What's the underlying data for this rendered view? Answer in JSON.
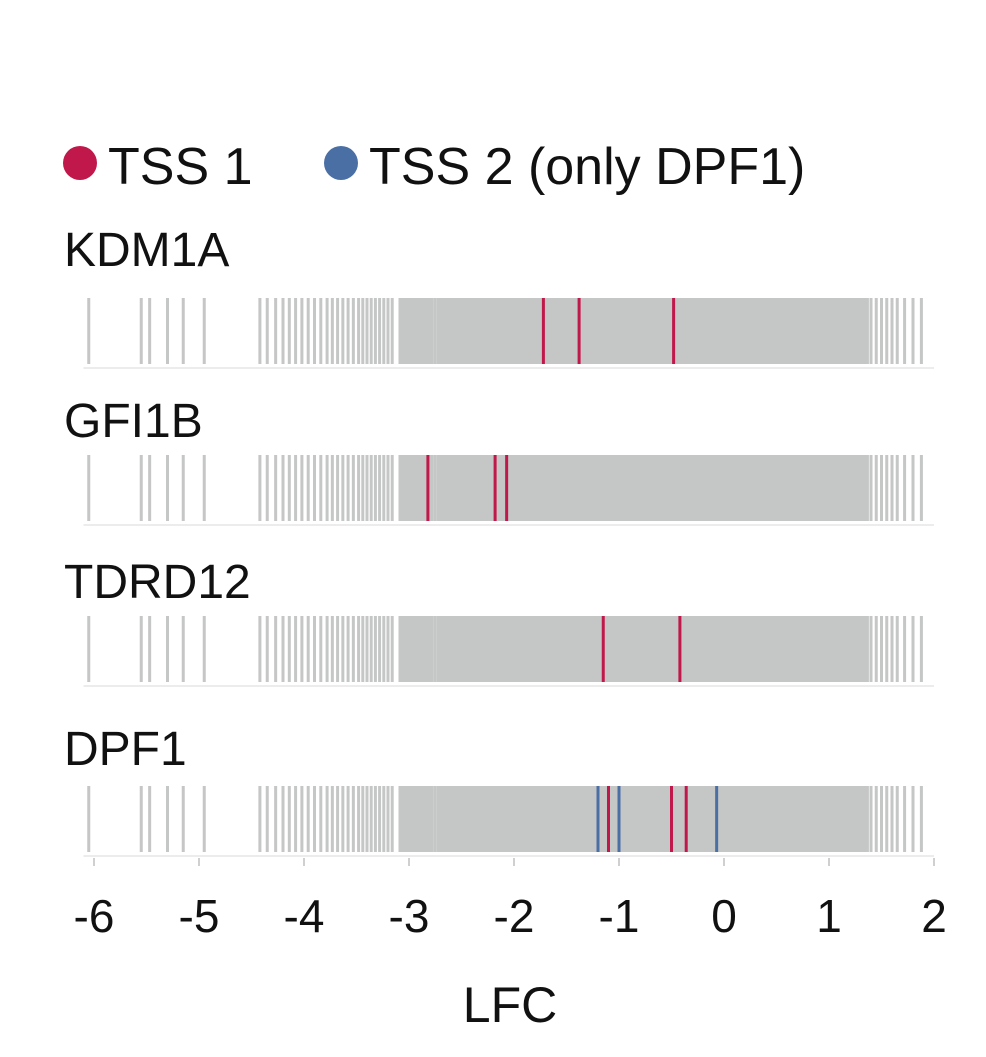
{
  "chart_data": {
    "type": "strip",
    "title": "",
    "xlabel": "LFC",
    "ylabel": "",
    "xlim": [
      -6.1,
      2.0
    ],
    "x_ticks": [
      -6,
      -5,
      -4,
      -3,
      -2,
      -1,
      0,
      1,
      2
    ],
    "legend": {
      "placement": "top",
      "entries": [
        {
          "label": "TSS 1",
          "color": "#C0184A"
        },
        {
          "label": "TSS 2 (only DPF1)",
          "color": "#4A6FA5"
        }
      ]
    },
    "background_color": "#C5C6C6",
    "background_lfc": [
      -6.05,
      -5.55,
      -5.47,
      -5.3,
      -5.15,
      -4.95,
      -4.42,
      -4.35,
      -4.27,
      -4.2,
      -4.14,
      -4.08,
      -4.02,
      -3.96,
      -3.9,
      -3.84,
      -3.78,
      -3.73,
      -3.68,
      -3.63,
      -3.58,
      -3.53,
      -3.48,
      -3.44,
      -3.4,
      -3.36,
      -3.32,
      -3.28,
      -3.24,
      -3.2,
      -3.16,
      -2.75,
      -2.7,
      1.4,
      1.45,
      1.5,
      1.55,
      1.6,
      1.65,
      1.72,
      1.8,
      1.88
    ],
    "dense_region": [
      -3.1,
      1.38
    ],
    "dense_gaps": [
      -2.75
    ],
    "genes": [
      {
        "name": "KDM1A",
        "tss1": [
          -1.72,
          -1.38,
          -0.48
        ],
        "tss2": []
      },
      {
        "name": "GFI1B",
        "tss1": [
          -2.82,
          -2.18,
          -2.07
        ],
        "tss2": []
      },
      {
        "name": "TDRD12",
        "tss1": [
          -1.15,
          -0.42
        ],
        "tss2": []
      },
      {
        "name": "DPF1",
        "tss1": [
          -1.1,
          -0.5,
          -0.36
        ],
        "tss2": [
          -1.2,
          -1.0,
          -0.07
        ]
      }
    ]
  }
}
